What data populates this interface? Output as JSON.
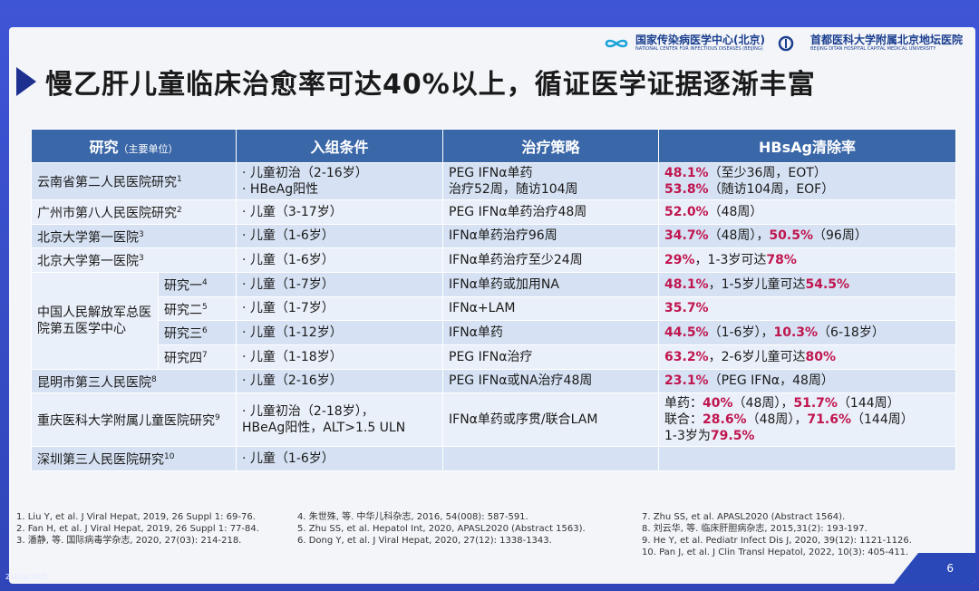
{
  "logos": [
    {
      "name": "国家传染病医学中心(北京)",
      "sub": "NATIONAL CENTER FOR INFECTIOUS DISEASES (BEIJING)"
    },
    {
      "name": "首都医科大学附属北京地坛医院",
      "sub": "BEIJING DITAN HOSPITAL CAPITAL MEDICAL UNIVERSITY"
    }
  ],
  "title": "慢乙肝儿童临床治愈率可达40%以上，循证医学证据逐渐丰富",
  "table": {
    "headers": {
      "study": "研究",
      "study_sub": "（主要单位）",
      "criteria": "入组条件",
      "strategy": "治疗策略",
      "rate": "HBsAg清除率"
    },
    "rows": [
      {
        "study": "云南省第二人民医院研究",
        "ref": "1",
        "criteria": [
          "· 儿童初治（2-16岁）",
          "· HBeAg阳性"
        ],
        "strategy": [
          "PEG IFNα单药",
          "治疗52周，随访104周"
        ],
        "rate": [
          [
            "48.1%",
            "（至少36周，EOT）"
          ],
          [
            "53.8%",
            "（随访104周，EOF）"
          ]
        ]
      },
      {
        "study": "广州市第八人民医院研究",
        "ref": "2",
        "criteria": [
          "· 儿童（3-17岁）"
        ],
        "strategy": [
          "PEG IFNα单药治疗48周"
        ],
        "rate": [
          [
            "52.0%",
            "（48周）"
          ]
        ]
      },
      {
        "study": "北京大学第一医院",
        "ref": "3",
        "criteria": [
          "· 儿童（1-6岁）"
        ],
        "strategy": [
          "IFNα单药治疗96周"
        ],
        "rate": [
          [
            "34.7%",
            "（48周），",
            "50.5%",
            "（96周）"
          ]
        ]
      },
      {
        "study": "北京大学第一医院",
        "ref": "3",
        "criteria": [
          "· 儿童（1-6岁）"
        ],
        "strategy": [
          "IFNα单药治疗至少24周"
        ],
        "rate": [
          [
            "29%",
            "，1-3岁可达",
            "78%",
            ""
          ]
        ]
      },
      {
        "group": "中国人民解放军总医院第五医学中心",
        "sub": "研究一",
        "ref": "4",
        "criteria": [
          "· 儿童（1-7岁）"
        ],
        "strategy": [
          "IFNα单药或加用NA"
        ],
        "rate": [
          [
            "48.1%",
            "，1-5岁儿童可达",
            "54.5%",
            ""
          ]
        ]
      },
      {
        "sub": "研究二",
        "ref": "5",
        "criteria": [
          "· 儿童（1-7岁）"
        ],
        "strategy": [
          "IFNα+LAM"
        ],
        "rate": [
          [
            "35.7%",
            ""
          ]
        ]
      },
      {
        "sub": "研究三",
        "ref": "6",
        "criteria": [
          "· 儿童（1-12岁）"
        ],
        "strategy": [
          "IFNα单药"
        ],
        "rate": [
          [
            "44.5%",
            "（1-6岁），",
            "10.3%",
            "（6-18岁）"
          ]
        ]
      },
      {
        "sub": "研究四",
        "ref": "7",
        "criteria": [
          "· 儿童（1-18岁）"
        ],
        "strategy": [
          "PEG IFNα治疗"
        ],
        "rate": [
          [
            "63.2%",
            "，2-6岁儿童可达",
            "80%",
            ""
          ]
        ]
      },
      {
        "study": "昆明市第三人民医院",
        "ref": "8",
        "criteria": [
          "· 儿童（2-16岁）"
        ],
        "strategy": [
          "PEG IFNα或NA治疗48周"
        ],
        "rate": [
          [
            "23.1%",
            "（PEG IFNα，48周）"
          ]
        ]
      },
      {
        "study": "重庆医科大学附属儿童医院研究",
        "ref": "9",
        "criteria": [
          "· 儿童初治（2-18岁），",
          "HBeAg阳性，ALT>1.5 ULN"
        ],
        "strategy": [
          "IFNα单药或序贯/联合LAM"
        ],
        "rate": [
          [
            "单药：",
            "40%",
            "（48周），",
            "51.7%",
            "（144周）"
          ],
          [
            "联合：",
            "28.6%",
            "（48周），",
            "71.6%",
            "（144周）"
          ],
          [
            "1-3岁为",
            "79.5%",
            ""
          ]
        ]
      },
      {
        "study": "深圳第三人民医院研究",
        "ref": "10",
        "criteria": [
          "· 儿童（1-6岁）"
        ],
        "strategy": [],
        "rate": []
      }
    ]
  },
  "refs": [
    [
      "1. Liu Y, et al. J Viral Hepat, 2019, 26 Suppl 1: 69-76.",
      "2. Fan H, et al. J Viral Hepat, 2019, 26 Suppl 1: 77-84.",
      "3. 潘静, 等. 国际病毒学杂志, 2020, 27(03): 214-218."
    ],
    [
      "4. 朱世殊, 等. 中华儿科杂志, 2016, 54(008): 587-591.",
      "5. Zhu SS, et al. Hepatol Int, 2020, APASL2020 (Abstract 1563).",
      "6. Dong Y, et al. J Viral Hepat, 2020, 27(12): 1338-1343."
    ],
    [
      "7. Zhu SS, et al. APASL2020 (Abstract 1564).",
      "8. 刘云华, 等. 临床肝胆病杂志, 2015,31(2): 193-197.",
      "9. He Y, et al. Pediatr Infect Dis J, 2020, 39(12): 1121-1126.",
      "10. Pan J, et al. J Clin Transl Hepatol, 2022, 10(3): 405-411."
    ]
  ],
  "page_number": "6",
  "watermark": "zuoy.net",
  "colors": {
    "header": "#3a67a8",
    "highlight": "#c0154f",
    "title_arrow": "#1d2f8f"
  }
}
